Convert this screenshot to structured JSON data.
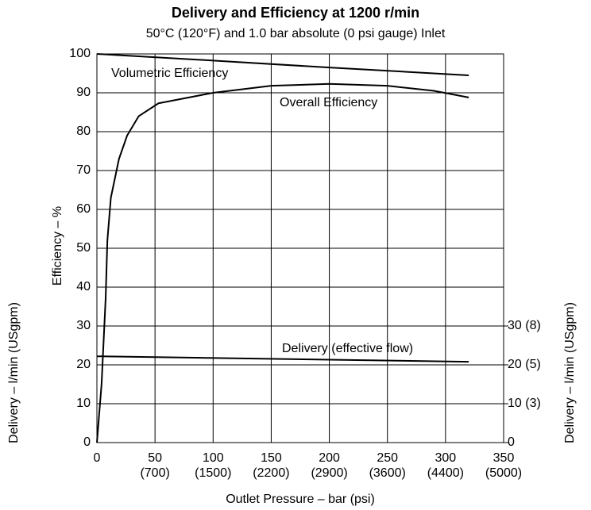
{
  "chart_data": {
    "type": "line",
    "title": "Delivery and Efficiency at 1200 r/min",
    "subtitle": "50°C (120°F) and 1.0 bar absolute (0 psi gauge) Inlet",
    "xlabel": "Outlet Pressure – bar (psi)",
    "ylabel": "Efficiency – %",
    "y2label": "Delivery – l/min (USgpm)",
    "xlim": [
      0,
      350
    ],
    "xticks": [
      0,
      50,
      100,
      150,
      200,
      250,
      300,
      350
    ],
    "xticks_psi": [
      null,
      "(700)",
      "(1500)",
      "(2200)",
      "(2900)",
      "(3600)",
      "(4400)",
      "(5000)"
    ],
    "ylim": [
      0,
      100
    ],
    "yticks": [
      0,
      10,
      20,
      30,
      40,
      50,
      60,
      70,
      80,
      90,
      100
    ],
    "y2lim": [
      0,
      100
    ],
    "y2ticks": [
      0,
      {
        "value": 10,
        "label": "10 (3)"
      },
      {
        "value": 20,
        "label": "20 (5)"
      },
      {
        "value": 30,
        "label": "30 (8)"
      }
    ],
    "grid": true,
    "color": "#000000",
    "series": [
      {
        "name": "Volumetric Efficiency",
        "x": [
          0,
          100,
          200,
          320
        ],
        "values": [
          100,
          98.3,
          96.5,
          94.5
        ]
      },
      {
        "name": "Overall Efficiency",
        "x": [
          0,
          4,
          7.5,
          9,
          12,
          19,
          26,
          36,
          53,
          100,
          150,
          200,
          250,
          290,
          320
        ],
        "values": [
          0,
          15,
          37,
          52,
          63,
          73,
          79,
          84,
          87.3,
          90,
          91.8,
          92.3,
          91.8,
          90.5,
          88.8
        ]
      },
      {
        "name": "Delivery (effective flow)",
        "axis": "y2",
        "x": [
          0,
          160,
          320
        ],
        "values": [
          22.2,
          21.5,
          20.8
        ]
      }
    ]
  }
}
